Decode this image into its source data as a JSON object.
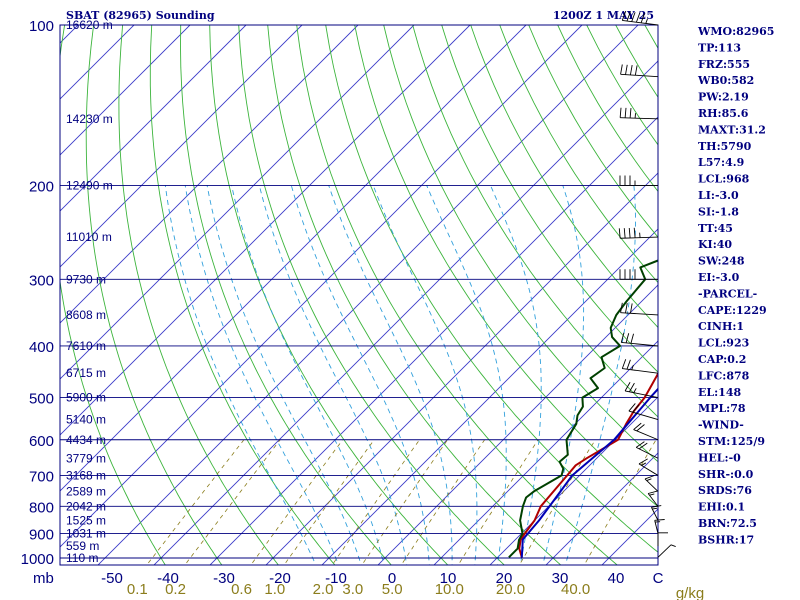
{
  "chart_data": {
    "type": "line",
    "title_left": "SBAT (82965) Sounding",
    "title_right": "1200Z  1 MAY 25",
    "pressure_unit_label": "mb",
    "mixing_ratio_unit_label": "g/kg",
    "pressure_ticks": [
      100,
      200,
      300,
      400,
      500,
      600,
      700,
      800,
      900,
      1000
    ],
    "temperature_ticks": [
      "-50",
      "-40",
      "-30",
      "-20",
      "-10",
      "0",
      "10",
      "20",
      "30",
      "40",
      "C"
    ],
    "mixing_ratio_labels": [
      "0.1",
      "0.2",
      "0.6",
      "1.0",
      "2.0",
      "3.0",
      "5.0",
      "10.0",
      "20.0",
      "40.0"
    ],
    "xlim": [
      -50,
      50
    ],
    "ylim": [
      1050,
      100
    ],
    "height_labels": [
      {
        "p": 100,
        "label": "16620 m"
      },
      {
        "p": 150,
        "label": "14230 m"
      },
      {
        "p": 200,
        "label": "12490 m"
      },
      {
        "p": 250,
        "label": "11010 m"
      },
      {
        "p": 300,
        "label": "9730 m"
      },
      {
        "p": 350,
        "label": "8608 m"
      },
      {
        "p": 400,
        "label": "7610 m"
      },
      {
        "p": 450,
        "label": "6715 m"
      },
      {
        "p": 500,
        "label": "5900 m"
      },
      {
        "p": 550,
        "label": "5140 m"
      },
      {
        "p": 600,
        "label": "4434 m"
      },
      {
        "p": 650,
        "label": "3779 m"
      },
      {
        "p": 700,
        "label": "3168 m"
      },
      {
        "p": 750,
        "label": "2589 m"
      },
      {
        "p": 800,
        "label": "2042 m"
      },
      {
        "p": 850,
        "label": "1525 m"
      },
      {
        "p": 900,
        "label": "1031 m"
      },
      {
        "p": 950,
        "label": "559 m"
      },
      {
        "p": 1000,
        "label": "110 m"
      }
    ],
    "series": [
      {
        "color": "#b00000",
        "points": [
          [
            997,
            24.3
          ],
          [
            960,
            22.3
          ],
          [
            925,
            21.0
          ],
          [
            900,
            20.6
          ],
          [
            850,
            20.0
          ],
          [
            800,
            18.6
          ],
          [
            750,
            18.2
          ],
          [
            700,
            17.8
          ],
          [
            670,
            17.5
          ],
          [
            650,
            18.2
          ],
          [
            600,
            20.5
          ],
          [
            560,
            19.1
          ],
          [
            530,
            18.2
          ],
          [
            500,
            17.7
          ],
          [
            470,
            16.6
          ],
          [
            450,
            15.8
          ],
          [
            430,
            15.7
          ],
          [
            400,
            14.5
          ],
          [
            380,
            15.7
          ],
          [
            350,
            15.4
          ],
          [
            325,
            13.3
          ],
          [
            300,
            10.7
          ],
          [
            275,
            8.4
          ],
          [
            250,
            5.3
          ],
          [
            225,
            2.1
          ],
          [
            200,
            -1.5
          ],
          [
            175,
            -5.3
          ],
          [
            150,
            -8.9
          ],
          [
            125,
            -12.5
          ],
          [
            110,
            -13.6
          ],
          [
            100,
            -9.5
          ]
        ]
      },
      {
        "color": "#004000",
        "points": [
          [
            997,
            22.0
          ],
          [
            960,
            22.0
          ],
          [
            925,
            20.7
          ],
          [
            900,
            20.2
          ],
          [
            850,
            17.4
          ],
          [
            800,
            15.4
          ],
          [
            770,
            14.4
          ],
          [
            750,
            14.7
          ],
          [
            700,
            16.8
          ],
          [
            680,
            15.9
          ],
          [
            660,
            14.0
          ],
          [
            640,
            14.2
          ],
          [
            600,
            11.3
          ],
          [
            560,
            10.2
          ],
          [
            540,
            8.9
          ],
          [
            520,
            8.3
          ],
          [
            500,
            6.6
          ],
          [
            480,
            7.7
          ],
          [
            460,
            4.6
          ],
          [
            440,
            5.3
          ],
          [
            420,
            2.8
          ],
          [
            400,
            4.1
          ],
          [
            385,
            1.1
          ],
          [
            370,
            -0.8
          ],
          [
            350,
            -2.1
          ],
          [
            330,
            -2.7
          ],
          [
            300,
            -3.3
          ],
          [
            285,
            -6.3
          ],
          [
            265,
            -1.6
          ],
          [
            250,
            6.9
          ],
          [
            240,
            3.1
          ],
          [
            230,
            5.5
          ],
          [
            220,
            -1.6
          ],
          [
            200,
            -2.1
          ],
          [
            180,
            -6.7
          ],
          [
            160,
            -10.0
          ],
          [
            140,
            -13.0
          ],
          [
            120,
            -16.4
          ],
          [
            110,
            -18.8
          ],
          [
            100,
            -19.8
          ]
        ]
      },
      {
        "color": "#0000b4",
        "points": [
          [
            997,
            24.3
          ],
          [
            923,
            21.3
          ],
          [
            850,
            20.8
          ],
          [
            700,
            18.7
          ],
          [
            600,
            19.8
          ],
          [
            500,
            18.7
          ],
          [
            450,
            18.3
          ],
          [
            400,
            16.9
          ],
          [
            350,
            14.9
          ],
          [
            300,
            11.6
          ],
          [
            250,
            7.8
          ],
          [
            200,
            1.5
          ],
          [
            175,
            -2.5
          ],
          [
            150,
            -7.4
          ],
          [
            125,
            -13.6
          ],
          [
            100,
            -20.8
          ]
        ]
      }
    ],
    "wind_barbs_kt": [
      {
        "p": 100,
        "dir": 290,
        "spd": 55
      },
      {
        "p": 125,
        "dir": 280,
        "spd": 40
      },
      {
        "p": 150,
        "dir": 275,
        "spd": 35
      },
      {
        "p": 200,
        "dir": 270,
        "spd": 35
      },
      {
        "p": 250,
        "dir": 265,
        "spd": 45
      },
      {
        "p": 300,
        "dir": 270,
        "spd": 40
      },
      {
        "p": 350,
        "dir": 280,
        "spd": 30
      },
      {
        "p": 400,
        "dir": 285,
        "spd": 30
      },
      {
        "p": 450,
        "dir": 290,
        "spd": 25
      },
      {
        "p": 500,
        "dir": 300,
        "spd": 25
      },
      {
        "p": 550,
        "dir": 310,
        "spd": 20
      },
      {
        "p": 600,
        "dir": 320,
        "spd": 20
      },
      {
        "p": 650,
        "dir": 325,
        "spd": 20
      },
      {
        "p": 700,
        "dir": 330,
        "spd": 15
      },
      {
        "p": 750,
        "dir": 340,
        "spd": 15
      },
      {
        "p": 800,
        "dir": 345,
        "spd": 15
      },
      {
        "p": 850,
        "dir": 350,
        "spd": 15
      },
      {
        "p": 900,
        "dir": 355,
        "spd": 15
      },
      {
        "p": 950,
        "dir": 360,
        "spd": 10
      },
      {
        "p": 997,
        "dir": 20,
        "spd": 5
      }
    ],
    "indices": [
      "WMO:82965",
      "TP:113",
      "FRZ:555",
      "WB0:582",
      "PW:2.19",
      "RH:85.6",
      "MAXT:31.2",
      "TH:5790",
      "L57:4.9",
      "LCL:968",
      "LI:-3.0",
      "SI:-1.8",
      "TT:45",
      "KI:40",
      "SW:248",
      "EI:-3.0",
      "-PARCEL-",
      "CAPE:1229",
      "CINH:1",
      "LCL:923",
      "CAP:0.2",
      "LFC:878",
      "EL:148",
      "MPL:78",
      "-WIND-",
      "STM:125/9",
      "HEL:-0",
      "SHR-:0.0",
      "SRDS:76",
      "EHI:0.1",
      "BRN:72.5",
      "BSHR:17"
    ]
  },
  "colors": {
    "frame": "#00007f",
    "isotherm": "#3a3ac8",
    "dry_adiabat": "#3cb43c",
    "moist_adiabat": "#32a0dc",
    "mixing_ratio": "#8b7d1c"
  }
}
